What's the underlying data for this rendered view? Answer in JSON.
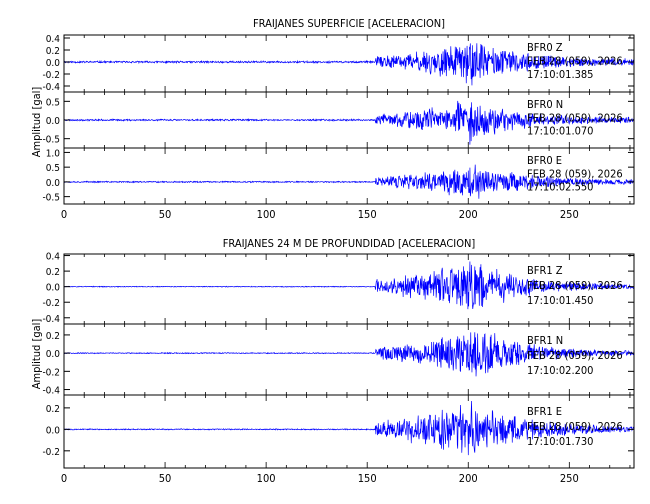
{
  "chart_data": [
    {
      "type": "line",
      "title": "FRAIJANES SUPERFICIE [ACELERACION]",
      "ylabel": "Amplitud [gal]",
      "xlim": [
        0,
        282
      ],
      "x_ticks": [
        0,
        50,
        100,
        150,
        200,
        250
      ],
      "grid": false,
      "panels": [
        {
          "station": "BFR0",
          "component": "Z",
          "date": "FEB 28 (059), 2026",
          "time": "17:10:01.385",
          "ylim": [
            -0.5,
            0.45
          ],
          "y_ticks": [
            0.4,
            0.2,
            0.0,
            -0.2,
            -0.4
          ],
          "y_tick_labels": [
            "0.4",
            "0.2",
            "0.0",
            "-0.2",
            "-0.4"
          ],
          "signal": {
            "onset": 154,
            "peak_time": 201,
            "decay": 235,
            "noise": 0.018,
            "peak": 0.4,
            "seed": 11
          }
        },
        {
          "station": "BFR0",
          "component": "N",
          "date": "FEB 28 (059), 2026",
          "time": "17:10:01.070",
          "ylim": [
            -0.75,
            0.75
          ],
          "y_ticks": [
            0.5,
            0.0,
            -0.5
          ],
          "y_tick_labels": [
            "0.5",
            "0.0",
            "-0.5"
          ],
          "signal": {
            "onset": 154,
            "peak_time": 200,
            "decay": 235,
            "noise": 0.025,
            "peak": 0.62,
            "seed": 23
          }
        },
        {
          "station": "BFR0",
          "component": "E",
          "date": "FEB 28 (059), 2026",
          "time": "17:10:02.550",
          "ylim": [
            -0.75,
            1.15
          ],
          "y_ticks": [
            1.0,
            0.5,
            0.0,
            -0.5
          ],
          "y_tick_labels": [
            "1.0",
            "0.5",
            "0.0",
            "-0.5"
          ],
          "signal": {
            "onset": 154,
            "peak_time": 203,
            "decay": 238,
            "noise": 0.025,
            "peak": 0.7,
            "seed": 37
          }
        }
      ]
    },
    {
      "type": "line",
      "title": "FRAIJANES 24 M DE PROFUNDIDAD [ACELERACION]",
      "ylabel": "Amplitud [gal]",
      "xlim": [
        0,
        282
      ],
      "x_ticks": [
        0,
        50,
        100,
        150,
        200,
        250
      ],
      "grid": false,
      "panels": [
        {
          "station": "BFR1",
          "component": "Z",
          "date": "FEB 28 (059), 2026",
          "time": "17:10:01.450",
          "ylim": [
            -0.48,
            0.42
          ],
          "y_ticks": [
            0.4,
            0.2,
            0.0,
            -0.2,
            -0.4
          ],
          "y_tick_labels": [
            "0.4",
            "0.2",
            "0.0",
            "-0.2",
            "-0.4"
          ],
          "signal": {
            "onset": 154,
            "peak_time": 202,
            "decay": 240,
            "noise": 0.006,
            "peak": 0.38,
            "seed": 51
          }
        },
        {
          "station": "BFR1",
          "component": "N",
          "date": "FEB 28 (059), 2026",
          "time": "17:10:02.200",
          "ylim": [
            -0.46,
            0.32
          ],
          "y_ticks": [
            0.2,
            0.0,
            -0.2,
            -0.4
          ],
          "y_tick_labels": [
            "0.2",
            "0.0",
            "-0.2",
            "-0.4"
          ],
          "signal": {
            "onset": 154,
            "peak_time": 205,
            "decay": 242,
            "noise": 0.006,
            "peak": 0.3,
            "seed": 67
          }
        },
        {
          "station": "BFR1",
          "component": "E",
          "date": "FEB 28 (059), 2026",
          "time": "17:10:01.730",
          "ylim": [
            -0.36,
            0.32
          ],
          "y_ticks": [
            0.2,
            0.0,
            -0.2
          ],
          "y_tick_labels": [
            "0.2",
            "0.0",
            "-0.2"
          ],
          "signal": {
            "onset": 154,
            "peak_time": 200,
            "decay": 240,
            "noise": 0.006,
            "peak": 0.3,
            "seed": 83
          }
        }
      ]
    }
  ],
  "style": {
    "trace_color": "#0000ff",
    "axis_color": "#000000",
    "background": "#ffffff"
  }
}
